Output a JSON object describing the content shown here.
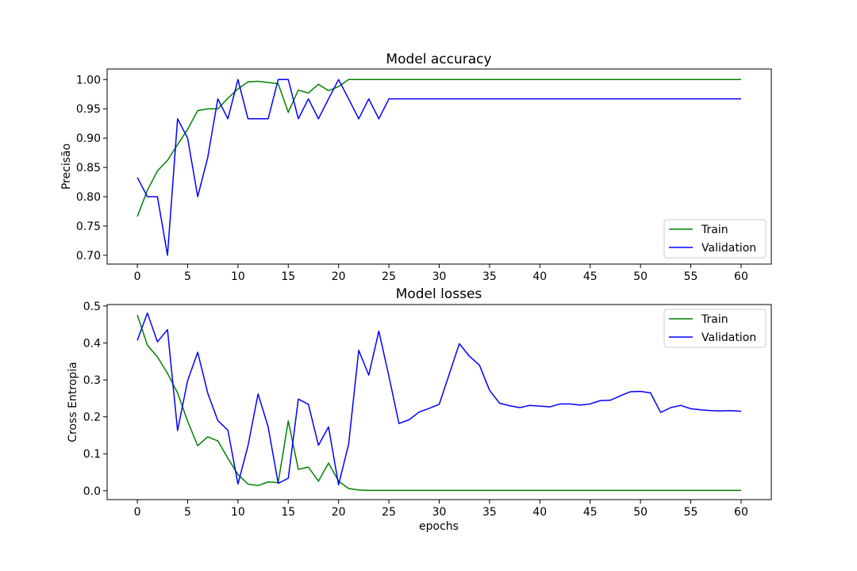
{
  "chart_data": [
    {
      "type": "line",
      "title": "Model accuracy",
      "xlabel": "",
      "ylabel": "Precisão",
      "xlim": [
        -3,
        63
      ],
      "ylim": [
        0.685,
        1.018
      ],
      "xticks": [
        0,
        5,
        10,
        15,
        20,
        25,
        30,
        35,
        40,
        45,
        50,
        55,
        60
      ],
      "xtick_labels": [
        "0",
        "5",
        "10",
        "15",
        "20",
        "25",
        "30",
        "35",
        "40",
        "45",
        "50",
        "55",
        "60"
      ],
      "yticks": [
        0.7,
        0.75,
        0.8,
        0.85,
        0.9,
        0.95,
        1.0
      ],
      "ytick_labels": [
        "0.70",
        "0.75",
        "0.80",
        "0.85",
        "0.90",
        "0.95",
        "1.00"
      ],
      "legend_position": "lower-right",
      "grid": false,
      "series": [
        {
          "name": "Train",
          "color": "#008000",
          "x": [
            0,
            1,
            2,
            3,
            4,
            5,
            6,
            7,
            8,
            9,
            10,
            11,
            12,
            13,
            14,
            15,
            16,
            17,
            18,
            19,
            20,
            21,
            22,
            23,
            24,
            25,
            26,
            27,
            28,
            29,
            30,
            31,
            32,
            33,
            34,
            35,
            36,
            37,
            38,
            39,
            40,
            41,
            42,
            43,
            44,
            45,
            46,
            47,
            48,
            49,
            50,
            51,
            52,
            53,
            54,
            55,
            56,
            57,
            58,
            59,
            60
          ],
          "values": [
            0.766,
            0.811,
            0.844,
            0.862,
            0.889,
            0.915,
            0.947,
            0.95,
            0.95,
            0.968,
            0.984,
            0.996,
            0.997,
            0.995,
            0.993,
            0.944,
            0.982,
            0.977,
            0.992,
            0.981,
            0.988,
            1.0,
            1.0,
            1.0,
            1.0,
            1.0,
            1.0,
            1.0,
            1.0,
            1.0,
            1.0,
            1.0,
            1.0,
            1.0,
            1.0,
            1.0,
            1.0,
            1.0,
            1.0,
            1.0,
            1.0,
            1.0,
            1.0,
            1.0,
            1.0,
            1.0,
            1.0,
            1.0,
            1.0,
            1.0,
            1.0,
            1.0,
            1.0,
            1.0,
            1.0,
            1.0,
            1.0,
            1.0,
            1.0,
            1.0,
            1.0
          ]
        },
        {
          "name": "Validation",
          "color": "#0000ff",
          "x": [
            0,
            1,
            2,
            3,
            4,
            5,
            6,
            7,
            8,
            9,
            10,
            11,
            12,
            13,
            14,
            15,
            16,
            17,
            18,
            19,
            20,
            21,
            22,
            23,
            24,
            25,
            26,
            27,
            28,
            29,
            30,
            31,
            32,
            33,
            34,
            35,
            36,
            37,
            38,
            39,
            40,
            41,
            42,
            43,
            44,
            45,
            46,
            47,
            48,
            49,
            50,
            51,
            52,
            53,
            54,
            55,
            56,
            57,
            58,
            59,
            60
          ],
          "values": [
            0.833,
            0.8,
            0.8,
            0.7,
            0.933,
            0.9,
            0.8,
            0.867,
            0.967,
            0.933,
            1.0,
            0.933,
            0.933,
            0.933,
            1.0,
            1.0,
            0.933,
            0.967,
            0.933,
            0.967,
            1.0,
            0.967,
            0.933,
            0.967,
            0.933,
            0.967,
            0.967,
            0.967,
            0.967,
            0.967,
            0.967,
            0.967,
            0.967,
            0.967,
            0.967,
            0.967,
            0.967,
            0.967,
            0.967,
            0.967,
            0.967,
            0.967,
            0.967,
            0.967,
            0.967,
            0.967,
            0.967,
            0.967,
            0.967,
            0.967,
            0.967,
            0.967,
            0.967,
            0.967,
            0.967,
            0.967,
            0.967,
            0.967,
            0.967,
            0.967,
            0.967
          ]
        }
      ]
    },
    {
      "type": "line",
      "title": "Model losses",
      "xlabel": "epochs",
      "ylabel": "Cross Entropia",
      "xlim": [
        -3,
        63
      ],
      "ylim": [
        -0.024,
        0.504
      ],
      "xticks": [
        0,
        5,
        10,
        15,
        20,
        25,
        30,
        35,
        40,
        45,
        50,
        55,
        60
      ],
      "xtick_labels": [
        "0",
        "5",
        "10",
        "15",
        "20",
        "25",
        "30",
        "35",
        "40",
        "45",
        "50",
        "55",
        "60"
      ],
      "yticks": [
        0.0,
        0.1,
        0.2,
        0.3,
        0.4,
        0.5
      ],
      "ytick_labels": [
        "0.0",
        "0.1",
        "0.2",
        "0.3",
        "0.4",
        "0.5"
      ],
      "legend_position": "upper-right",
      "grid": false,
      "series": [
        {
          "name": "Train",
          "color": "#008000",
          "x": [
            0,
            1,
            2,
            3,
            4,
            5,
            6,
            7,
            8,
            9,
            10,
            11,
            12,
            13,
            14,
            15,
            16,
            17,
            18,
            19,
            20,
            21,
            22,
            23,
            24,
            25,
            26,
            27,
            28,
            29,
            30,
            31,
            32,
            33,
            34,
            35,
            36,
            37,
            38,
            39,
            40,
            41,
            42,
            43,
            44,
            45,
            46,
            47,
            48,
            49,
            50,
            51,
            52,
            53,
            54,
            55,
            56,
            57,
            58,
            59,
            60
          ],
          "values": [
            0.476,
            0.394,
            0.362,
            0.318,
            0.265,
            0.188,
            0.122,
            0.146,
            0.135,
            0.088,
            0.044,
            0.018,
            0.014,
            0.024,
            0.022,
            0.189,
            0.058,
            0.064,
            0.026,
            0.075,
            0.026,
            0.006,
            0.002,
            0.001,
            0.001,
            0.001,
            0.001,
            0.001,
            0.001,
            0.001,
            0.001,
            0.001,
            0.001,
            0.001,
            0.001,
            0.001,
            0.001,
            0.001,
            0.001,
            0.001,
            0.001,
            0.001,
            0.001,
            0.001,
            0.001,
            0.001,
            0.001,
            0.001,
            0.001,
            0.001,
            0.001,
            0.001,
            0.001,
            0.001,
            0.001,
            0.001,
            0.001,
            0.001,
            0.001,
            0.001,
            0.001
          ]
        },
        {
          "name": "Validation",
          "color": "#0000ff",
          "x": [
            0,
            1,
            2,
            3,
            4,
            5,
            6,
            7,
            8,
            9,
            10,
            11,
            12,
            13,
            14,
            15,
            16,
            17,
            18,
            19,
            20,
            21,
            22,
            23,
            24,
            25,
            26,
            27,
            28,
            29,
            30,
            31,
            32,
            33,
            34,
            35,
            36,
            37,
            38,
            39,
            40,
            41,
            42,
            43,
            44,
            45,
            46,
            47,
            48,
            49,
            50,
            51,
            52,
            53,
            54,
            55,
            56,
            57,
            58,
            59,
            60
          ],
          "values": [
            0.407,
            0.481,
            0.403,
            0.436,
            0.163,
            0.298,
            0.375,
            0.264,
            0.19,
            0.164,
            0.018,
            0.122,
            0.262,
            0.173,
            0.02,
            0.034,
            0.248,
            0.234,
            0.123,
            0.173,
            0.016,
            0.126,
            0.38,
            0.313,
            0.432,
            0.31,
            0.182,
            0.192,
            0.213,
            0.223,
            0.234,
            0.316,
            0.398,
            0.364,
            0.34,
            0.272,
            0.237,
            0.23,
            0.225,
            0.231,
            0.229,
            0.227,
            0.235,
            0.235,
            0.232,
            0.235,
            0.244,
            0.245,
            0.257,
            0.268,
            0.269,
            0.265,
            0.212,
            0.225,
            0.231,
            0.222,
            0.219,
            0.217,
            0.216,
            0.217,
            0.215
          ]
        }
      ]
    }
  ]
}
